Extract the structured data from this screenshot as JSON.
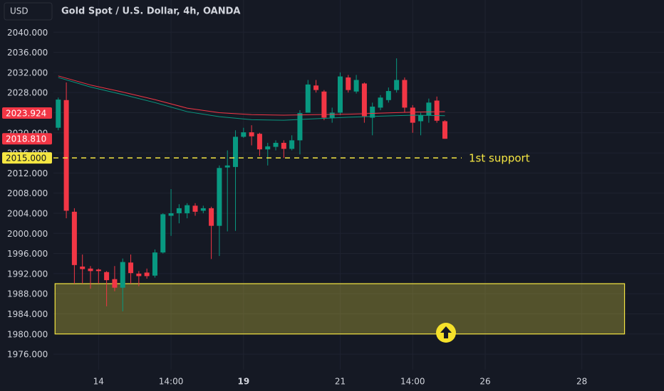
{
  "header": {
    "currency": "USD"
  },
  "chart_data": {
    "type": "candlestick",
    "title": "Gold Spot / U.S. Dollar, 4h, OANDA",
    "ylim": [
      1972.9,
      2046.4
    ],
    "yticks": [
      {
        "value": 1976,
        "label": "1976.000"
      },
      {
        "value": 1980,
        "label": "1980.000"
      },
      {
        "value": 1984,
        "label": "1984.000"
      },
      {
        "value": 1988,
        "label": "1988.000"
      },
      {
        "value": 1992,
        "label": "1992.000"
      },
      {
        "value": 1996,
        "label": "1996.000"
      },
      {
        "value": 2000,
        "label": "2000.000"
      },
      {
        "value": 2004,
        "label": "2004.000"
      },
      {
        "value": 2008,
        "label": "2008.000"
      },
      {
        "value": 2012,
        "label": "2012.000"
      },
      {
        "value": 2016,
        "label": "2016.000"
      },
      {
        "value": 2020,
        "label": "2020.000"
      },
      {
        "value": 2024,
        "label": "2024.000"
      },
      {
        "value": 2028,
        "label": "2028.000"
      },
      {
        "value": 2032,
        "label": "2032.000"
      },
      {
        "value": 2036,
        "label": "2036.000"
      },
      {
        "value": 2040,
        "label": "2040.000"
      }
    ],
    "xlim": [
      -0.6,
      75.2
    ],
    "xticks": [
      {
        "value": 5,
        "label": "14"
      },
      {
        "value": 14,
        "label": "14:00"
      },
      {
        "value": 23,
        "label": "19"
      },
      {
        "value": 35,
        "label": "21"
      },
      {
        "value": 44,
        "label": "14:00"
      },
      {
        "value": 53,
        "label": "26"
      },
      {
        "value": 65,
        "label": "28"
      }
    ],
    "grid": true,
    "candles": {
      "up_color": "#089981",
      "down_color": "#f23645",
      "x": [
        0,
        1,
        2,
        3,
        4,
        5,
        6,
        7,
        8,
        9,
        10,
        11,
        12,
        13,
        14,
        15,
        16,
        17,
        18,
        19,
        20,
        21,
        22,
        23,
        24,
        25,
        26,
        27,
        28,
        29,
        30,
        31,
        32,
        33,
        34,
        35,
        36,
        37,
        38,
        39,
        40,
        41,
        42,
        43,
        44,
        45,
        46,
        47,
        48
      ],
      "open": [
        2021,
        2026.5,
        2004.3,
        1993.4,
        1993,
        1992.8,
        1992.3,
        1990.9,
        1989.2,
        1994.2,
        1992,
        1992.2,
        1991.6,
        1996.2,
        2003.5,
        2004,
        2004,
        2005.5,
        2004.5,
        2005,
        2001.5,
        2013.1,
        2013.2,
        2019.2,
        2020.1,
        2019.8,
        2016.7,
        2017.2,
        2018,
        2016.8,
        2018.5,
        2024,
        2029.4,
        2028.2,
        2023,
        2024,
        2031,
        2028.2,
        2029.8,
        2023,
        2025,
        2026.5,
        2028.5,
        2030.5,
        2025,
        2022.3,
        2023.5,
        2026.4,
        2022.3
      ],
      "high": [
        2027,
        2030,
        2005,
        1995.8,
        1993.5,
        1993,
        1992.5,
        1993.5,
        1995,
        1995.8,
        1992.5,
        1993,
        1996.8,
        2004,
        2008.8,
        2005.8,
        2006,
        2006,
        2005.5,
        2005.3,
        2013.5,
        2016.5,
        2020.5,
        2021,
        2021.5,
        2020,
        2018,
        2018.5,
        2018.5,
        2019.5,
        2024.5,
        2030.5,
        2030.5,
        2028.5,
        2025,
        2032,
        2031.5,
        2031.5,
        2030,
        2026,
        2027.5,
        2029,
        2034.8,
        2031,
        2025.5,
        2024,
        2026.8,
        2027.2,
        2022.5
      ],
      "low": [
        2020.5,
        2003,
        1990,
        1990,
        1989,
        1990,
        1985.5,
        1988.5,
        1984.5,
        1990,
        1989.5,
        1991,
        1991.2,
        1996,
        1999.5,
        2002,
        2003,
        2003.5,
        2004,
        1994.9,
        1995.5,
        2000.4,
        2000.5,
        2019,
        2017.5,
        2015.4,
        2013.5,
        2016.5,
        2015,
        2016.5,
        2015.7,
        2024,
        2028,
        2022.5,
        2022,
        2023.5,
        2028,
        2027.8,
        2022,
        2019.5,
        2024.5,
        2026,
        2028,
        2024,
        2020,
        2019.5,
        2022,
        2022,
        2018.8
      ],
      "close": [
        2026.6,
        2004.5,
        1993.7,
        1992.9,
        1992.5,
        1992.5,
        1990.7,
        1989.2,
        1994.3,
        1992.1,
        1991.5,
        1991.5,
        1996.2,
        2003.8,
        2004,
        2005,
        2005.6,
        2004.3,
        2005,
        2001.5,
        2013,
        2013.5,
        2019.2,
        2020.1,
        2019.3,
        2016.7,
        2017.3,
        2018,
        2016.8,
        2018.5,
        2023.9,
        2029.6,
        2028.5,
        2023,
        2024,
        2031.2,
        2028.5,
        2030.5,
        2023.3,
        2025.2,
        2027,
        2028.3,
        2030.5,
        2025,
        2022,
        2023.5,
        2026,
        2022.4,
        2018.81
      ]
    },
    "lines": [
      {
        "color": "#f23645",
        "x": [
          0,
          4,
          8,
          12,
          16,
          20,
          24,
          28,
          32,
          36,
          40,
          44,
          48
        ],
        "values": [
          2031.3,
          2029.5,
          2028.1,
          2026.6,
          2024.9,
          2024.0,
          2023.6,
          2023.5,
          2023.6,
          2023.7,
          2023.9,
          2024.1,
          2024.2
        ]
      },
      {
        "color": "#089981",
        "x": [
          0,
          4,
          8,
          12,
          16,
          20,
          24,
          28,
          32,
          36,
          40,
          44,
          48
        ],
        "values": [
          2031.0,
          2029.1,
          2027.6,
          2026.0,
          2024.2,
          2023.2,
          2022.6,
          2022.5,
          2022.8,
          2023.1,
          2023.3,
          2023.5,
          2023.4
        ]
      }
    ],
    "zone": {
      "y": [
        1980,
        1990
      ],
      "x": [
        -0.4,
        70.3
      ],
      "color": "#f5e642"
    },
    "support": {
      "value": 2015,
      "label": "1st support",
      "color": "#f5e642"
    },
    "price_labels": [
      {
        "value": 2023.924,
        "label": "2023.924",
        "color": "#f23645"
      },
      {
        "value": 2018.81,
        "label": "2018.810",
        "color": "#f23645"
      },
      {
        "value": 2015,
        "label": "2015.000",
        "color": "#f5e642"
      }
    ]
  }
}
